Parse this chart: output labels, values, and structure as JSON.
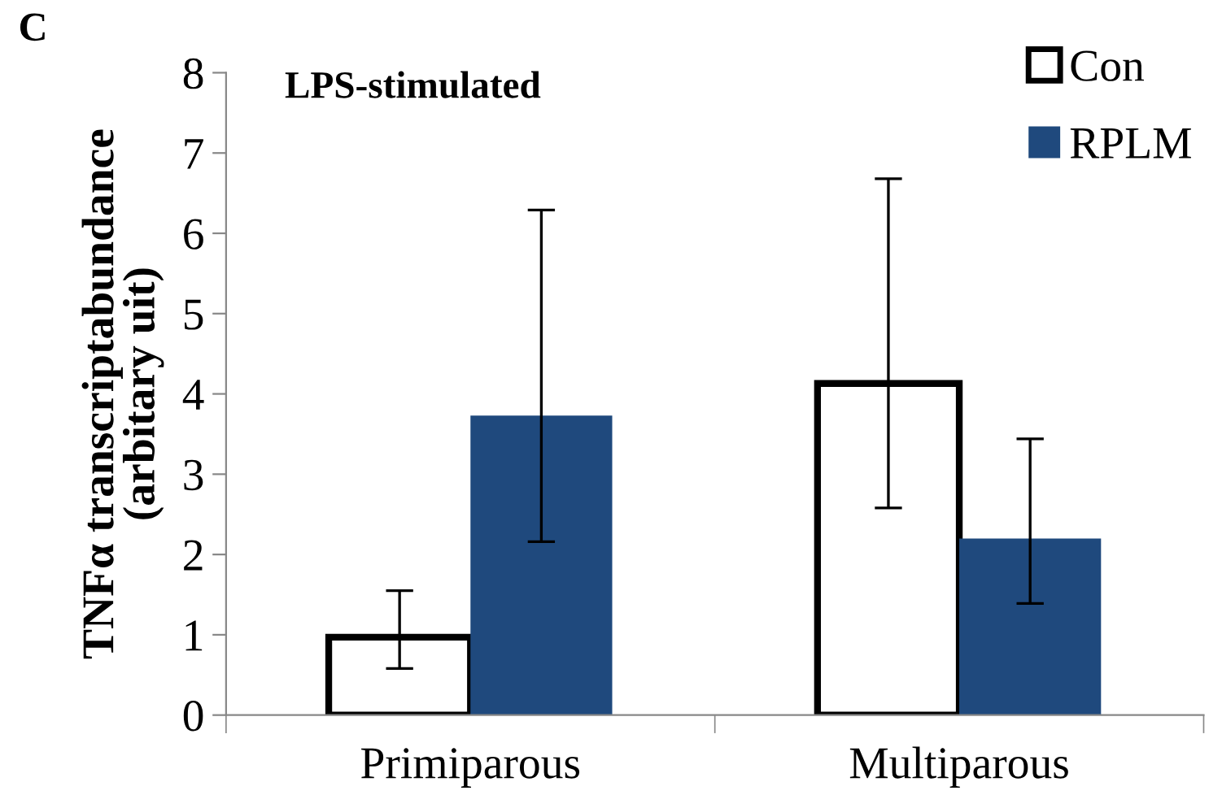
{
  "chart_data": {
    "type": "bar",
    "title": "LPS-stimulated",
    "ylabel": "TNFα transcriptabundance\n(arbitary uit)",
    "annotations": [
      "C"
    ],
    "categories": [
      "Primiparous",
      "Multiparous"
    ],
    "series": [
      {
        "name": "Con",
        "color": "#ffffff",
        "values": [
          0.97,
          4.13
        ],
        "errors": [
          [
            0.58,
            1.55
          ],
          [
            2.58,
            6.68
          ]
        ]
      },
      {
        "name": "RPLM",
        "color": "#1f497d",
        "values": [
          3.73,
          2.2
        ],
        "errors": [
          [
            2.16,
            6.29
          ],
          [
            1.39,
            3.44
          ]
        ]
      }
    ],
    "ylim": [
      0,
      8
    ],
    "yticks": [
      0,
      1,
      2,
      3,
      4,
      5,
      6,
      7,
      8
    ],
    "grid": false,
    "legend": "top right"
  }
}
